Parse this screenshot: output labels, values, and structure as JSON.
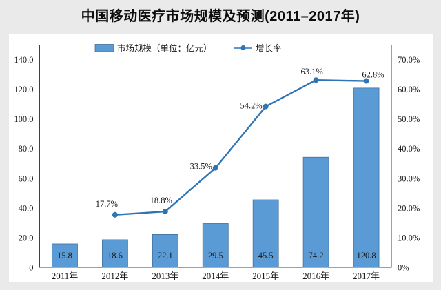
{
  "title": "中国移动医疗市场规模及预测(2011–2017年)",
  "colors": {
    "background": "#eaeaea",
    "panel": "#ffffff",
    "bar_fill": "#5B9BD5",
    "bar_border": "#41719C",
    "line": "#2E75B6",
    "axis": "#404040",
    "text": "#1a1a1a"
  },
  "chart_data": {
    "type": "bar",
    "subtype": "combo-bar-line",
    "title": "中国移动医疗市场规模及预测(2011–2017年)",
    "categories": [
      "2011年",
      "2012年",
      "2013年",
      "2014年",
      "2015年",
      "2016年",
      "2017年"
    ],
    "series": [
      {
        "name": "市场规模（单位：亿元）",
        "type": "bar",
        "axis": "left",
        "start_index": 0,
        "values": [
          15.8,
          18.6,
          22.1,
          29.5,
          45.5,
          74.2,
          120.8
        ],
        "labels": [
          "15.8",
          "18.6",
          "22.1",
          "29.5",
          "45.5",
          "74.2",
          "120.8"
        ],
        "color": "#5B9BD5"
      },
      {
        "name": "增长率",
        "type": "line",
        "axis": "right",
        "start_index": 1,
        "values": [
          17.7,
          18.8,
          33.5,
          54.2,
          63.1,
          62.8
        ],
        "labels": [
          "17.7%",
          "18.8%",
          "33.5%",
          "54.2%",
          "63.1%",
          "62.8%"
        ],
        "color": "#2E75B6"
      }
    ],
    "left_axis": {
      "min": 0,
      "max": 150,
      "tick_values": [
        0,
        20,
        40,
        60,
        80,
        100,
        120,
        140
      ],
      "tick_labels": [
        "0",
        "20.0",
        "40.0",
        "60.0",
        "80.0",
        "100.0",
        "120.0",
        "140.0"
      ]
    },
    "right_axis": {
      "min": 0,
      "max": 75,
      "tick_values": [
        0,
        10,
        20,
        30,
        40,
        50,
        60,
        70
      ],
      "tick_labels": [
        "0%",
        "10.0%",
        "20.0%",
        "30.0%",
        "40.0%",
        "50.0%",
        "60.0%",
        "70.0%"
      ]
    },
    "legend": {
      "position": "top-inside",
      "items": [
        {
          "label": "市场规模（单位：亿元）",
          "marker": "bar-swatch"
        },
        {
          "label": "增长率",
          "marker": "line-dot"
        }
      ]
    },
    "grid": false
  }
}
